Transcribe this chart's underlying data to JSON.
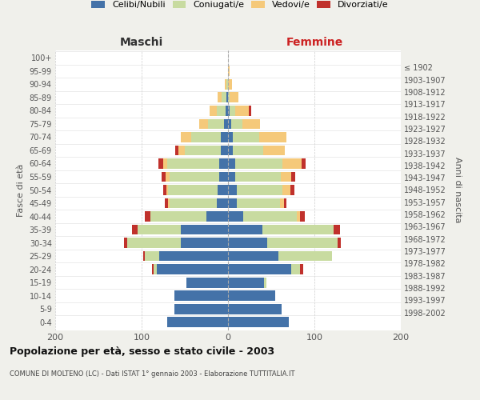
{
  "age_groups": [
    "100+",
    "95-99",
    "90-94",
    "85-89",
    "80-84",
    "75-79",
    "70-74",
    "65-69",
    "60-64",
    "55-59",
    "50-54",
    "45-49",
    "40-44",
    "35-39",
    "30-34",
    "25-29",
    "20-24",
    "15-19",
    "10-14",
    "5-9",
    "0-4"
  ],
  "birth_years": [
    "≤ 1902",
    "1903-1907",
    "1908-1912",
    "1913-1917",
    "1918-1922",
    "1923-1927",
    "1928-1932",
    "1933-1937",
    "1938-1942",
    "1943-1947",
    "1948-1952",
    "1953-1957",
    "1958-1962",
    "1963-1967",
    "1968-1972",
    "1973-1977",
    "1978-1982",
    "1983-1987",
    "1988-1992",
    "1993-1997",
    "1998-2002"
  ],
  "maschi": {
    "celibi": [
      0,
      0,
      0,
      2,
      3,
      5,
      8,
      8,
      10,
      10,
      12,
      13,
      25,
      55,
      55,
      80,
      82,
      48,
      62,
      62,
      70
    ],
    "coniugati": [
      0,
      0,
      2,
      5,
      10,
      18,
      35,
      42,
      60,
      58,
      57,
      55,
      65,
      50,
      62,
      16,
      4,
      0,
      0,
      0,
      0
    ],
    "vedovi": [
      0,
      0,
      2,
      5,
      8,
      10,
      12,
      7,
      5,
      4,
      2,
      1,
      0,
      0,
      0,
      0,
      0,
      0,
      0,
      0,
      0
    ],
    "divorziati": [
      0,
      0,
      0,
      0,
      0,
      0,
      0,
      4,
      6,
      5,
      4,
      4,
      6,
      6,
      3,
      2,
      2,
      0,
      0,
      0,
      0
    ]
  },
  "femmine": {
    "nubili": [
      0,
      0,
      0,
      0,
      2,
      4,
      6,
      6,
      8,
      8,
      10,
      10,
      18,
      40,
      45,
      58,
      73,
      42,
      55,
      62,
      70
    ],
    "coniugate": [
      0,
      0,
      0,
      2,
      6,
      13,
      30,
      35,
      55,
      53,
      53,
      50,
      62,
      82,
      82,
      62,
      10,
      2,
      0,
      0,
      0
    ],
    "vedove": [
      0,
      2,
      5,
      10,
      16,
      20,
      32,
      25,
      22,
      12,
      9,
      5,
      3,
      0,
      0,
      0,
      0,
      0,
      0,
      0,
      0
    ],
    "divorziate": [
      0,
      0,
      0,
      0,
      3,
      0,
      0,
      0,
      5,
      5,
      5,
      3,
      6,
      8,
      4,
      0,
      4,
      0,
      0,
      0,
      0
    ]
  },
  "colors": {
    "celibi_nubili": "#4472a8",
    "coniugati": "#c8dba0",
    "vedovi": "#f5c97a",
    "divorziati": "#c0312c"
  },
  "xlim": 200,
  "title": "Popolazione per età, sesso e stato civile - 2003",
  "subtitle": "COMUNE DI MOLTENO (LC) - Dati ISTAT 1° gennaio 2003 - Elaborazione TUTTITALIA.IT",
  "ylabel_left": "Fasce di età",
  "ylabel_right": "Anni di nascita",
  "xlabel_maschi": "Maschi",
  "xlabel_femmine": "Femmine",
  "bg_color": "#f0f0eb",
  "plot_bg": "#ffffff",
  "legend_labels": [
    "Celibi/Nubili",
    "Coniugati/e",
    "Vedovi/e",
    "Divorziati/e"
  ]
}
